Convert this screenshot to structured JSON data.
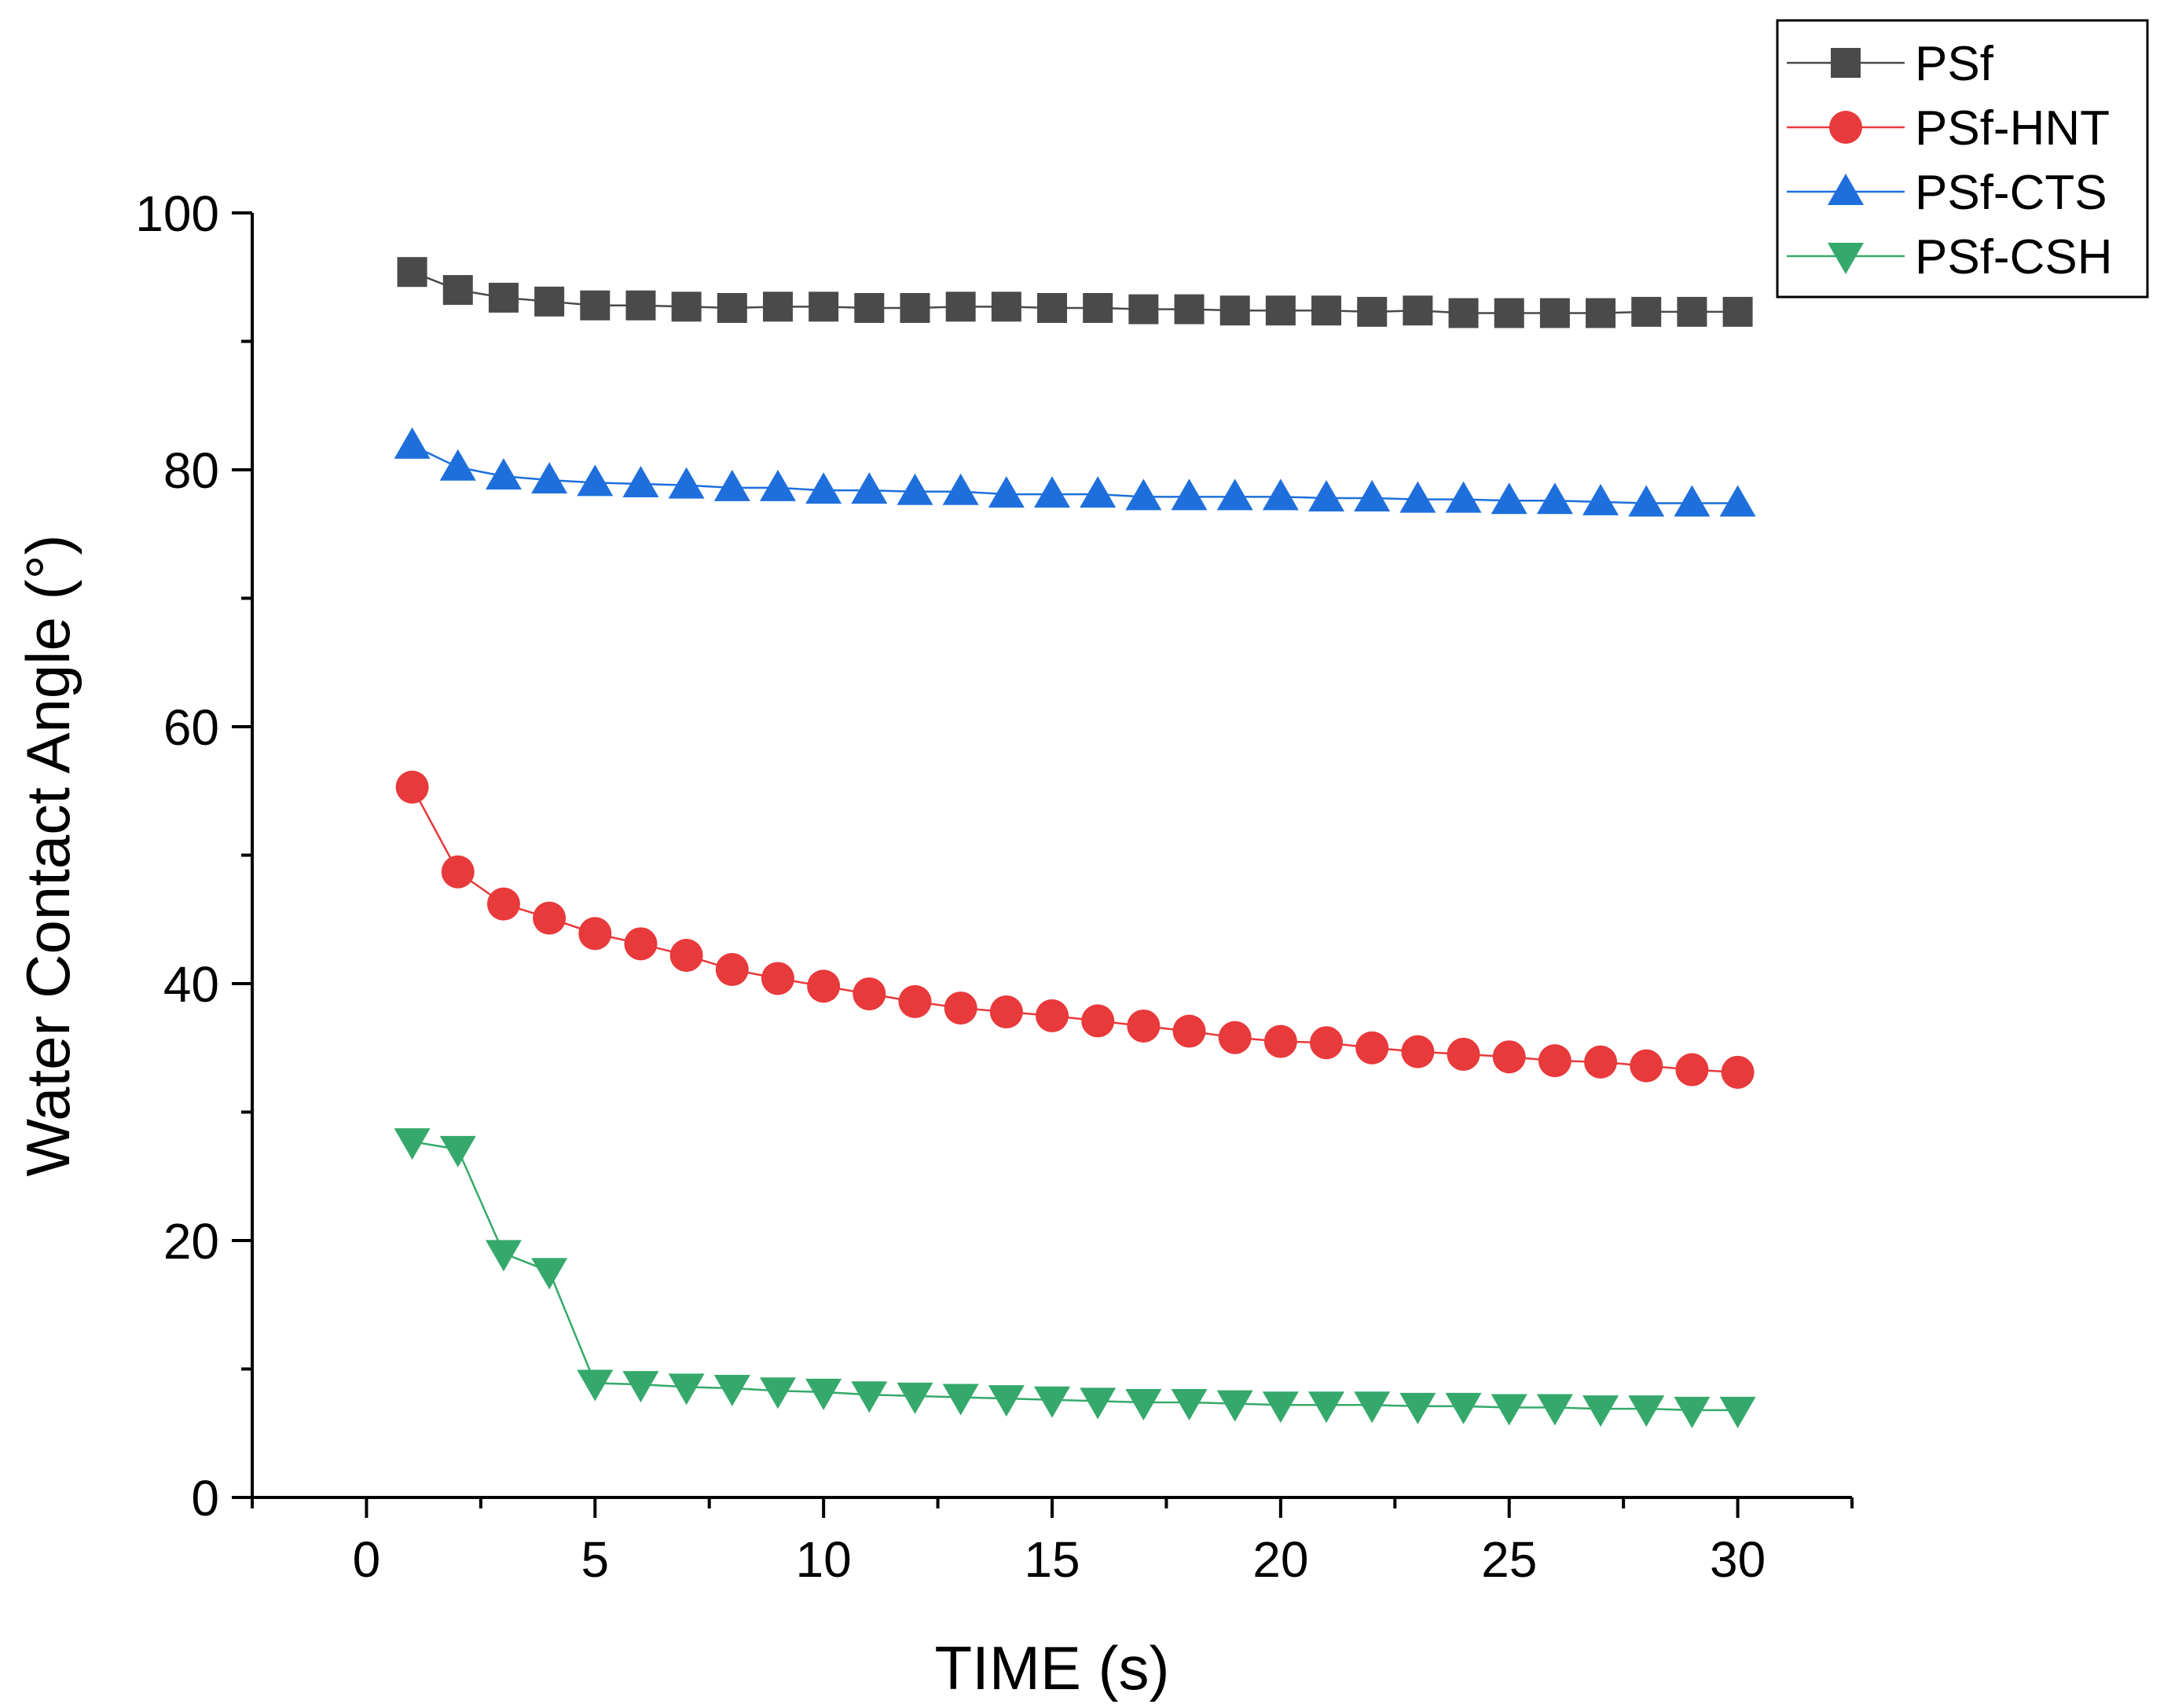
{
  "chart_data": {
    "type": "line",
    "title": "",
    "xlabel": "TIME (s)",
    "ylabel": "Water Contact Angle (°)",
    "xlim": [
      -2.5,
      32.5
    ],
    "ylim": [
      0,
      100
    ],
    "xticks": [
      0,
      5,
      10,
      15,
      20,
      25,
      30
    ],
    "xtick_labels": [
      "0",
      "5",
      "10",
      "15",
      "20",
      "25",
      "30"
    ],
    "yticks": [
      0,
      20,
      40,
      60,
      80,
      100
    ],
    "ytick_labels": [
      "0",
      "20",
      "40",
      "60",
      "80",
      "100"
    ],
    "grid": false,
    "legend_position": "top-right",
    "x": [
      1,
      2,
      3,
      4,
      5,
      6,
      7,
      8,
      9,
      10,
      11,
      12,
      13,
      14,
      15,
      16,
      17,
      18,
      19,
      20,
      21,
      22,
      23,
      24,
      25,
      26,
      27,
      28,
      29,
      30
    ],
    "series": [
      {
        "name": "PSf",
        "color": "#4a4a4a",
        "marker": "square",
        "values": [
          95.4,
          94.0,
          93.4,
          93.1,
          92.8,
          92.8,
          92.7,
          92.6,
          92.7,
          92.7,
          92.6,
          92.6,
          92.7,
          92.7,
          92.6,
          92.6,
          92.5,
          92.5,
          92.4,
          92.4,
          92.4,
          92.3,
          92.4,
          92.2,
          92.2,
          92.2,
          92.2,
          92.3,
          92.3,
          92.3
        ]
      },
      {
        "name": "PSf-HNT",
        "color": "#e8393b",
        "marker": "circle",
        "values": [
          55.3,
          48.7,
          46.2,
          45.1,
          43.9,
          43.1,
          42.2,
          41.1,
          40.4,
          39.8,
          39.2,
          38.6,
          38.1,
          37.8,
          37.5,
          37.1,
          36.7,
          36.3,
          35.8,
          35.5,
          35.4,
          35.0,
          34.7,
          34.5,
          34.3,
          34.0,
          33.9,
          33.6,
          33.3,
          33.1
        ]
      },
      {
        "name": "PSf-CTS",
        "color": "#1e6fdc",
        "marker": "triangle-up",
        "values": [
          81.9,
          80.2,
          79.5,
          79.2,
          79.0,
          78.9,
          78.8,
          78.6,
          78.6,
          78.4,
          78.4,
          78.3,
          78.3,
          78.1,
          78.1,
          78.1,
          77.9,
          77.9,
          77.9,
          77.9,
          77.8,
          77.8,
          77.7,
          77.7,
          77.6,
          77.6,
          77.5,
          77.4,
          77.4,
          77.4
        ]
      },
      {
        "name": "PSf-CSH",
        "color": "#35a96b",
        "marker": "triangle-down",
        "values": [
          27.7,
          27.1,
          19.0,
          17.6,
          8.9,
          8.8,
          8.6,
          8.5,
          8.3,
          8.2,
          8.0,
          7.9,
          7.8,
          7.7,
          7.6,
          7.5,
          7.4,
          7.4,
          7.3,
          7.2,
          7.2,
          7.2,
          7.1,
          7.1,
          7.0,
          7.0,
          6.9,
          6.9,
          6.8,
          6.8
        ]
      }
    ]
  }
}
